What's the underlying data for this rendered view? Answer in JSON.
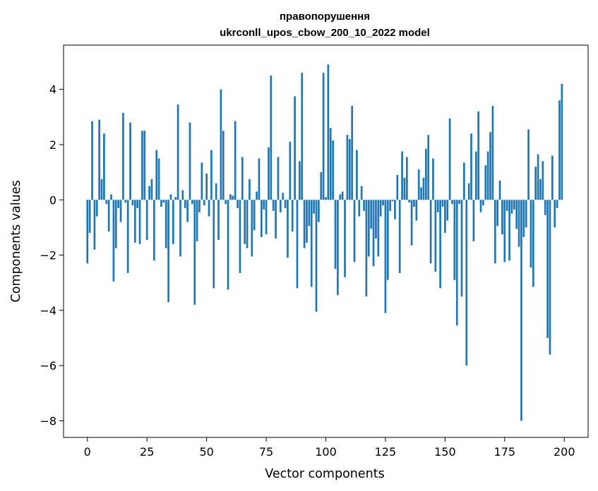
{
  "chart_data": {
    "type": "bar",
    "title_line1": "правопорушення",
    "title_line2": "ukrconll_upos_cbow_200_10_2022 model",
    "xlabel": "Vector components",
    "ylabel": "Components values",
    "xlim": [
      -10,
      210
    ],
    "ylim": [
      -8.6,
      5.6
    ],
    "x_ticks": [
      0,
      25,
      50,
      75,
      100,
      125,
      150,
      175,
      200
    ],
    "y_ticks": [
      -8,
      -6,
      -4,
      -2,
      0,
      2,
      4
    ],
    "y_tick_labels": [
      "−8",
      "−6",
      "−4",
      "−2",
      "0",
      "2",
      "4"
    ],
    "grid": false,
    "bar_color": "#1f77b4",
    "values": [
      -2.3,
      -1.2,
      2.85,
      -1.8,
      -0.6,
      2.9,
      0.75,
      2.4,
      -0.15,
      -1.15,
      0.2,
      -2.95,
      -1.75,
      -0.3,
      -0.8,
      3.15,
      -0.1,
      -2.65,
      2.8,
      -0.2,
      -1.55,
      -0.3,
      -1.6,
      2.5,
      2.5,
      -1.45,
      0.5,
      0.75,
      -2.2,
      1.8,
      1.5,
      -0.25,
      -0.1,
      -1.75,
      -3.7,
      0.2,
      -1.6,
      0.1,
      3.45,
      -2.05,
      0.35,
      -0.3,
      -0.8,
      2.8,
      -0.15,
      -3.8,
      -1.5,
      -0.45,
      1.35,
      -0.2,
      0.95,
      -0.6,
      1.8,
      -3.2,
      0.6,
      -1.45,
      4.0,
      2.5,
      -0.15,
      -3.25,
      0.2,
      0.15,
      2.85,
      -0.3,
      -2.65,
      1.55,
      -1.6,
      -1.75,
      0.75,
      -2.05,
      -1.1,
      0.3,
      1.5,
      -1.35,
      -0.35,
      -1.25,
      1.9,
      4.5,
      -0.4,
      -1.4,
      1.55,
      -0.45,
      0.25,
      -0.3,
      -2.1,
      2.1,
      -1.15,
      3.75,
      -3.2,
      1.4,
      4.6,
      -1.75,
      -1.55,
      -0.95,
      -3.15,
      -0.5,
      -4.05,
      -0.8,
      1.0,
      4.6,
      0.1,
      4.9,
      2.6,
      2.15,
      -2.5,
      -3.45,
      0.2,
      0.3,
      -2.8,
      2.35,
      2.2,
      3.4,
      -2.25,
      1.8,
      -0.6,
      0.5,
      -0.4,
      -3.5,
      -2.05,
      -1.05,
      -2.4,
      -1.4,
      -2.05,
      -0.6,
      -0.2,
      -4.1,
      -2.9,
      -0.4,
      -0.05,
      -0.7,
      0.9,
      -2.65,
      1.75,
      0.8,
      1.55,
      -0.1,
      -1.65,
      -0.25,
      -0.75,
      1.1,
      0.45,
      0.8,
      1.85,
      2.35,
      -2.3,
      1.5,
      -2.6,
      -0.45,
      -3.2,
      -0.25,
      -1.2,
      -0.75,
      2.95,
      -0.15,
      -2.9,
      -4.55,
      -0.15,
      -3.5,
      1.35,
      -6.0,
      0.6,
      2.4,
      -1.5,
      1.75,
      3.2,
      -0.45,
      -0.2,
      1.25,
      1.75,
      2.45,
      3.4,
      -2.3,
      -0.95,
      0.7,
      -1.25,
      -2.25,
      -0.4,
      -2.2,
      -0.5,
      -0.35,
      -1.05,
      -1.7,
      -8.0,
      -1.35,
      -1.0,
      2.55,
      -2.45,
      -3.15,
      1.2,
      1.65,
      0.75,
      1.4,
      -0.55,
      -5.0,
      -5.6,
      1.6,
      -1.0,
      -0.3,
      3.6,
      4.2
    ]
  }
}
